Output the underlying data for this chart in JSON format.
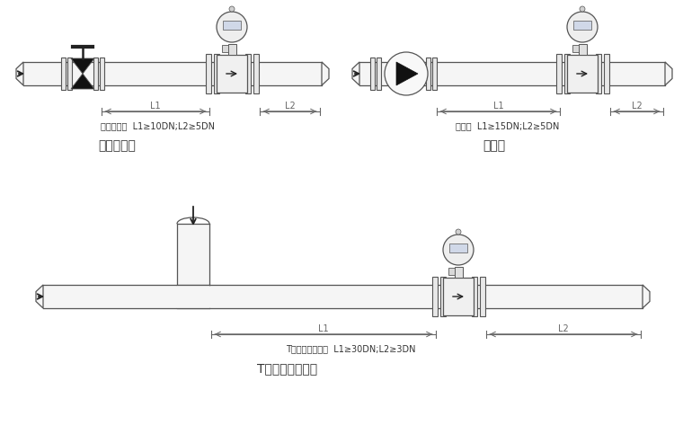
{
  "bg": "#ffffff",
  "lc": "#555555",
  "dc": "#222222",
  "pipe_face": "#f5f5f5",
  "flange_face": "#e8e8e8",
  "fm_face": "#f0f0f0",
  "head_face": "#eeeeee",
  "display_face": "#d0d8e8",
  "valve_face": "#111111",
  "dim_c": "#666666",
  "text_c": "#333333",
  "d1_sub": "截止阀下游  L1≥10DN;L2≥5DN",
  "d1_title": "截止阀下游",
  "d2_sub": "泵下游  L1≥15DN;L2≥5DN",
  "d2_title": "泵下游",
  "d3_sub": "T形三通、混合流  L1≥30DN;L2≥3DN",
  "d3_title": "T形三通、混合流",
  "figw": 7.5,
  "figh": 4.83,
  "dpi": 100
}
